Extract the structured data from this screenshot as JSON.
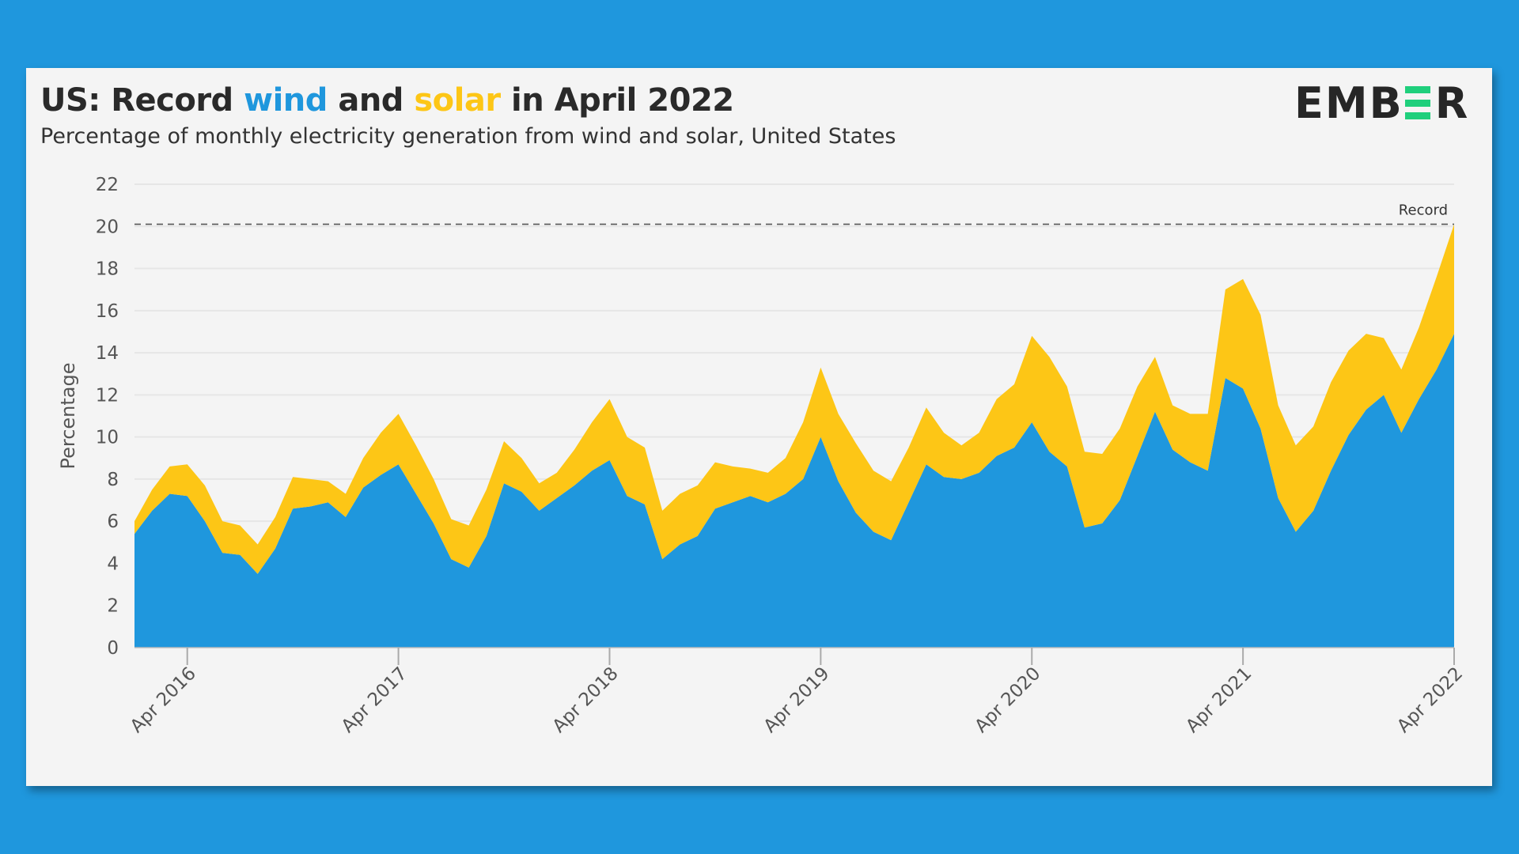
{
  "header": {
    "title_prefix": "US: Record ",
    "title_wind": "wind",
    "title_mid": " and ",
    "title_solar": "solar",
    "title_suffix": " in April 2022",
    "subtitle": "Percentage of monthly electricity generation from wind and solar, United States",
    "logo_text": "EMBER"
  },
  "colors": {
    "background": "#1f97dd",
    "wind": "#1f97dd",
    "solar": "#fdc616",
    "brand_green": "#1fcf7c",
    "card": "#f4f4f4"
  },
  "chart_data": {
    "type": "area",
    "stacked": true,
    "title": "US: Record wind and solar in April 2022",
    "ylabel": "Percentage",
    "xlabel": "",
    "ylim": [
      0,
      22
    ],
    "yticks": [
      0,
      2,
      4,
      6,
      8,
      10,
      12,
      14,
      16,
      18,
      20,
      22
    ],
    "grid": true,
    "xticks": [
      {
        "label": "Apr 2016",
        "x": "2016-04"
      },
      {
        "label": "Apr 2017",
        "x": "2017-04"
      },
      {
        "label": "Apr 2018",
        "x": "2018-04"
      },
      {
        "label": "Apr 2019",
        "x": "2019-04"
      },
      {
        "label": "Apr 2020",
        "x": "2020-04"
      },
      {
        "label": "Apr 2021",
        "x": "2021-04"
      },
      {
        "label": "Apr 2022",
        "x": "2022-04"
      }
    ],
    "x": [
      "2016-01",
      "2016-02",
      "2016-03",
      "2016-04",
      "2016-05",
      "2016-06",
      "2016-07",
      "2016-08",
      "2016-09",
      "2016-10",
      "2016-11",
      "2016-12",
      "2017-01",
      "2017-02",
      "2017-03",
      "2017-04",
      "2017-05",
      "2017-06",
      "2017-07",
      "2017-08",
      "2017-09",
      "2017-10",
      "2017-11",
      "2017-12",
      "2018-01",
      "2018-02",
      "2018-03",
      "2018-04",
      "2018-05",
      "2018-06",
      "2018-07",
      "2018-08",
      "2018-09",
      "2018-10",
      "2018-11",
      "2018-12",
      "2019-01",
      "2019-02",
      "2019-03",
      "2019-04",
      "2019-05",
      "2019-06",
      "2019-07",
      "2019-08",
      "2019-09",
      "2019-10",
      "2019-11",
      "2019-12",
      "2020-01",
      "2020-02",
      "2020-03",
      "2020-04",
      "2020-05",
      "2020-06",
      "2020-07",
      "2020-08",
      "2020-09",
      "2020-10",
      "2020-11",
      "2020-12",
      "2021-01",
      "2021-02",
      "2021-03",
      "2021-04",
      "2021-05",
      "2021-06",
      "2021-07",
      "2021-08",
      "2021-09",
      "2021-10",
      "2021-11",
      "2021-12",
      "2022-01",
      "2022-02",
      "2022-03",
      "2022-04"
    ],
    "series": [
      {
        "name": "wind",
        "color": "#1f97dd",
        "values": [
          5.4,
          6.5,
          7.3,
          7.2,
          6.0,
          4.5,
          4.4,
          3.5,
          4.7,
          6.6,
          6.7,
          6.9,
          6.2,
          7.6,
          8.2,
          8.7,
          7.3,
          5.9,
          4.2,
          3.8,
          5.3,
          7.8,
          7.4,
          6.5,
          7.1,
          7.7,
          8.4,
          8.9,
          7.2,
          6.8,
          4.2,
          4.9,
          5.3,
          6.6,
          6.9,
          7.2,
          6.9,
          7.3,
          8.0,
          10.0,
          7.9,
          6.4,
          5.5,
          5.1,
          6.9,
          8.7,
          8.1,
          8.0,
          8.3,
          9.1,
          9.5,
          10.7,
          9.3,
          8.6,
          5.7,
          5.9,
          7.0,
          9.1,
          11.2,
          9.4,
          8.8,
          8.4,
          12.8,
          12.3,
          10.4,
          7.1,
          5.5,
          6.5,
          8.4,
          10.1,
          11.3,
          12.0,
          10.2,
          11.8,
          13.2,
          14.9
        ]
      },
      {
        "name": "solar",
        "color": "#fdc616",
        "values": [
          0.6,
          1.0,
          1.3,
          1.5,
          1.7,
          1.5,
          1.4,
          1.4,
          1.5,
          1.5,
          1.3,
          1.0,
          1.1,
          1.4,
          2.0,
          2.4,
          2.3,
          2.1,
          1.9,
          2.0,
          2.2,
          2.0,
          1.6,
          1.3,
          1.2,
          1.7,
          2.3,
          2.9,
          2.8,
          2.7,
          2.3,
          2.4,
          2.4,
          2.2,
          1.7,
          1.3,
          1.4,
          1.7,
          2.7,
          3.3,
          3.2,
          3.3,
          2.9,
          2.8,
          2.6,
          2.7,
          2.1,
          1.6,
          1.9,
          2.7,
          3.0,
          4.1,
          4.5,
          3.8,
          3.6,
          3.3,
          3.4,
          3.3,
          2.6,
          2.1,
          2.3,
          2.7,
          4.2,
          5.2,
          5.4,
          4.4,
          4.1,
          4.0,
          4.2,
          4.0,
          3.6,
          2.7,
          3.0,
          3.4,
          4.4,
          5.2
        ]
      }
    ],
    "annotations": [
      {
        "label": "Record",
        "type": "dashed-hline",
        "value": 20.1
      }
    ]
  }
}
